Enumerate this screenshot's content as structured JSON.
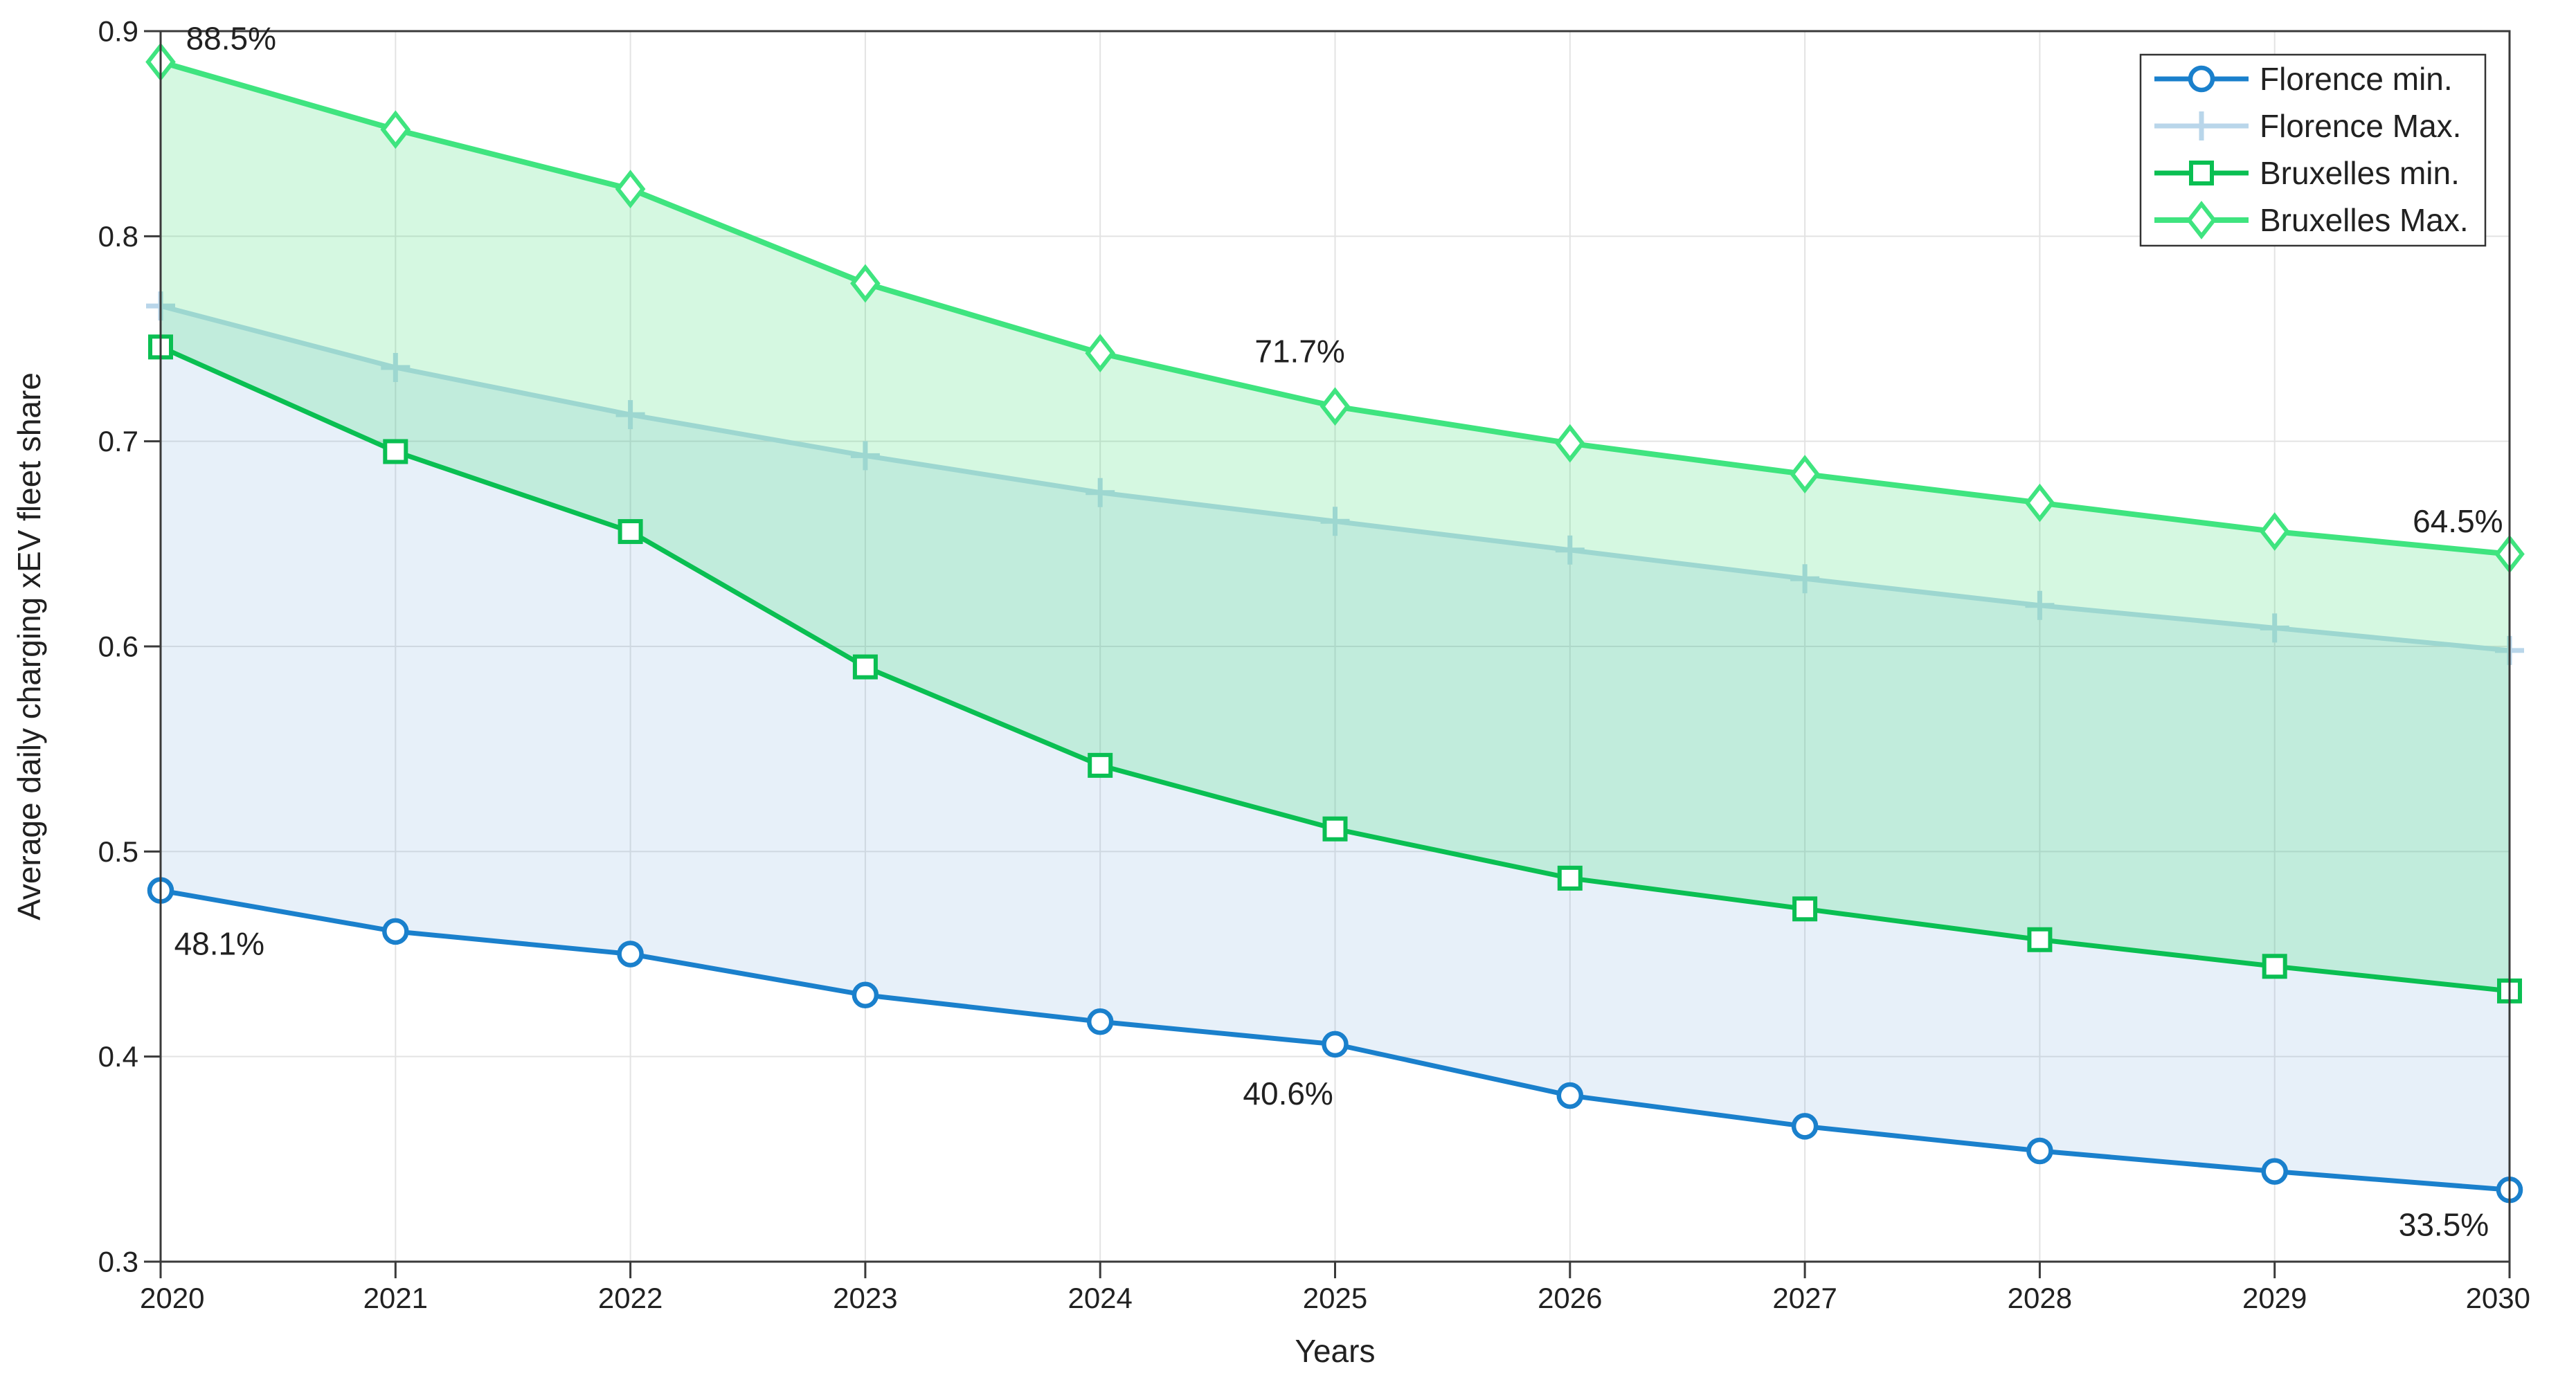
{
  "chart_data": {
    "type": "line",
    "title": "",
    "xlabel": "Years",
    "ylabel": "Average daily charging xEV fleet share",
    "x": [
      2020,
      2021,
      2022,
      2023,
      2024,
      2025,
      2026,
      2027,
      2028,
      2029,
      2030
    ],
    "xlim": [
      2020,
      2030
    ],
    "ylim": [
      0.3,
      0.9
    ],
    "yticks": [
      0.3,
      0.4,
      0.5,
      0.6,
      0.7,
      0.8,
      0.9
    ],
    "ytick_labels": [
      "0.3",
      "0.4",
      "0.5",
      "0.6",
      "0.7",
      "0.8",
      "0.9"
    ],
    "xtick_labels": [
      "2020",
      "2021",
      "2022",
      "2023",
      "2024",
      "2025",
      "2026",
      "2027",
      "2028",
      "2029",
      "2030"
    ],
    "grid": true,
    "legend_position": "top-right",
    "series": [
      {
        "name": "Florence min.",
        "marker": "circle",
        "color": "#1a80cc",
        "line_width": 7,
        "values": [
          0.481,
          0.461,
          0.45,
          0.43,
          0.417,
          0.406,
          0.381,
          0.366,
          0.354,
          0.344,
          0.335
        ]
      },
      {
        "name": "Florence Max.",
        "marker": "plus",
        "color": "#b9d6ea",
        "line_width": 7,
        "values": [
          0.766,
          0.736,
          0.713,
          0.693,
          0.675,
          0.661,
          0.647,
          0.633,
          0.62,
          0.609,
          0.598
        ]
      },
      {
        "name": "Bruxelles min.",
        "marker": "square",
        "color": "#0abf52",
        "line_width": 7,
        "values": [
          0.746,
          0.695,
          0.656,
          0.59,
          0.542,
          0.511,
          0.487,
          0.472,
          0.457,
          0.444,
          0.432
        ]
      },
      {
        "name": "Bruxelles Max.",
        "marker": "diamond",
        "color": "#3fe47f",
        "line_width": 8,
        "values": [
          0.885,
          0.852,
          0.823,
          0.777,
          0.743,
          0.717,
          0.699,
          0.684,
          0.67,
          0.656,
          0.645
        ]
      }
    ],
    "bands": [
      {
        "lower": "Florence min.",
        "upper": "Florence Max.",
        "color": "#5b9bd5",
        "opacity": 0.15
      },
      {
        "lower": "Bruxelles min.",
        "upper": "Bruxelles Max.",
        "color": "#2edd6a",
        "opacity": 0.2
      }
    ],
    "annotations": [
      {
        "text": "88.5%",
        "x": 2020.3,
        "y": 0.8965
      },
      {
        "text": "71.7%",
        "x": 2024.85,
        "y": 0.744
      },
      {
        "text": "64.5%",
        "x": 2029.78,
        "y": 0.661
      },
      {
        "text": "48.1%",
        "x": 2020.25,
        "y": 0.455
      },
      {
        "text": "40.6%",
        "x": 2024.8,
        "y": 0.382
      },
      {
        "text": "33.5%",
        "x": 2029.72,
        "y": 0.318
      }
    ],
    "colors": {
      "grid": "#e3e3e3",
      "spine": "#3a3a3a",
      "text": "#212121",
      "legend_border": "#333333",
      "background": "#ffffff"
    }
  }
}
